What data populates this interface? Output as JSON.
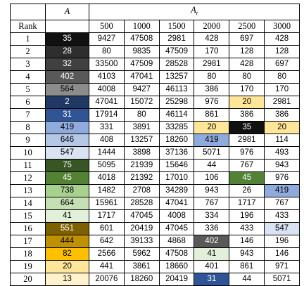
{
  "table": {
    "header": {
      "a": "A",
      "at_symbol": "A",
      "at_subscript": "t",
      "rank": "Rank",
      "columns": [
        "500",
        "1000",
        "1500",
        "2000",
        "2500",
        "3000"
      ]
    },
    "rows": [
      {
        "cells": [
          "1",
          "35",
          "9427",
          "47508",
          "2981",
          "428",
          "697",
          "428"
        ],
        "fills": [
          null,
          "#111111",
          null,
          null,
          null,
          null,
          null,
          null
        ]
      },
      {
        "cells": [
          "2",
          "28",
          "80",
          "9835",
          "47509",
          "170",
          "128",
          "128"
        ],
        "fills": [
          null,
          "#2e2e2e",
          null,
          null,
          null,
          null,
          null,
          null
        ]
      },
      {
        "cells": [
          "3",
          "32",
          "33500",
          "47509",
          "28528",
          "2981",
          "428",
          "697"
        ],
        "fills": [
          null,
          "#404040",
          null,
          null,
          null,
          null,
          null,
          null
        ]
      },
      {
        "cells": [
          "4",
          "402",
          "4103",
          "47041",
          "13257",
          "80",
          "80",
          "80"
        ],
        "fills": [
          null,
          "#595959",
          null,
          null,
          null,
          null,
          null,
          null
        ]
      },
      {
        "cells": [
          "5",
          "564",
          "4008",
          "9427",
          "46113",
          "386",
          "170",
          "170"
        ],
        "fills": [
          null,
          "#8c8c8c",
          null,
          null,
          null,
          null,
          null,
          null
        ]
      },
      {
        "cells": [
          "6",
          "2",
          "47041",
          "15072",
          "25298",
          "976",
          "20",
          "2981"
        ],
        "fills": [
          null,
          "#203864",
          null,
          null,
          null,
          null,
          "#ffe699",
          null
        ]
      },
      {
        "cells": [
          "7",
          "31",
          "17914",
          "80",
          "46114",
          "861",
          "386",
          "386"
        ],
        "fills": [
          null,
          "#2f5597",
          null,
          null,
          null,
          null,
          null,
          null
        ]
      },
      {
        "cells": [
          "8",
          "419",
          "331",
          "3891",
          "33285",
          "20",
          "35",
          "20"
        ],
        "fills": [
          null,
          "#8faadc",
          null,
          null,
          null,
          "#ffe699",
          "#111111",
          "#ffe699"
        ]
      },
      {
        "cells": [
          "9",
          "646",
          "408",
          "13257",
          "18260",
          "419",
          "2981",
          "114"
        ],
        "fills": [
          null,
          "#b4c7e7",
          null,
          null,
          null,
          "#8faadc",
          null,
          null
        ]
      },
      {
        "cells": [
          "10",
          "547",
          "1444",
          "3898",
          "37136",
          "5071",
          "976",
          "493"
        ],
        "fills": [
          null,
          "#dae3f3",
          null,
          null,
          null,
          null,
          null,
          null
        ]
      },
      {
        "cells": [
          "11",
          "75",
          "5095",
          "21939",
          "15646",
          "44",
          "767",
          "943"
        ],
        "fills": [
          null,
          "#375623",
          null,
          null,
          null,
          null,
          null,
          null
        ]
      },
      {
        "cells": [
          "12",
          "45",
          "4018",
          "21392",
          "17010",
          "106",
          "45",
          "976"
        ],
        "fills": [
          null,
          "#548235",
          null,
          null,
          null,
          null,
          "#548235",
          null
        ]
      },
      {
        "cells": [
          "13",
          "738",
          "1482",
          "2708",
          "34289",
          "943",
          "26",
          "419"
        ],
        "fills": [
          null,
          "#a9d18e",
          null,
          null,
          null,
          null,
          null,
          "#8faadc"
        ]
      },
      {
        "cells": [
          "14",
          "664",
          "15961",
          "28528",
          "47041",
          "767",
          "1717",
          "767"
        ],
        "fills": [
          null,
          "#c5e0b4",
          null,
          null,
          null,
          null,
          null,
          null
        ]
      },
      {
        "cells": [
          "15",
          "41",
          "1717",
          "47045",
          "4008",
          "334",
          "196",
          "433"
        ],
        "fills": [
          null,
          "#e2f0d9",
          null,
          null,
          null,
          null,
          null,
          null
        ]
      },
      {
        "cells": [
          "16",
          "551",
          "601",
          "20419",
          "47045",
          "336",
          "433",
          "547"
        ],
        "fills": [
          null,
          "#7f6000",
          null,
          null,
          null,
          null,
          null,
          "#dae3f3"
        ]
      },
      {
        "cells": [
          "17",
          "444",
          "642",
          "39133",
          "4868",
          "402",
          "146",
          "196"
        ],
        "fills": [
          null,
          "#bf9000",
          null,
          null,
          null,
          "#595959",
          null,
          null
        ]
      },
      {
        "cells": [
          "18",
          "82",
          "2566",
          "5962",
          "47508",
          "41",
          "943",
          "146"
        ],
        "fills": [
          null,
          "#ffc000",
          null,
          null,
          null,
          "#e2f0d9",
          null,
          null
        ]
      },
      {
        "cells": [
          "19",
          "20",
          "441",
          "3861",
          "18660",
          "401",
          "861",
          "971"
        ],
        "fills": [
          null,
          "#ffe699",
          null,
          null,
          null,
          null,
          null,
          null
        ]
      },
      {
        "cells": [
          "20",
          "13",
          "20076",
          "18260",
          "20419",
          "31",
          "44",
          "5071"
        ],
        "fills": [
          null,
          "#fff2cc",
          null,
          null,
          null,
          "#2f5597",
          null,
          null
        ]
      }
    ]
  }
}
